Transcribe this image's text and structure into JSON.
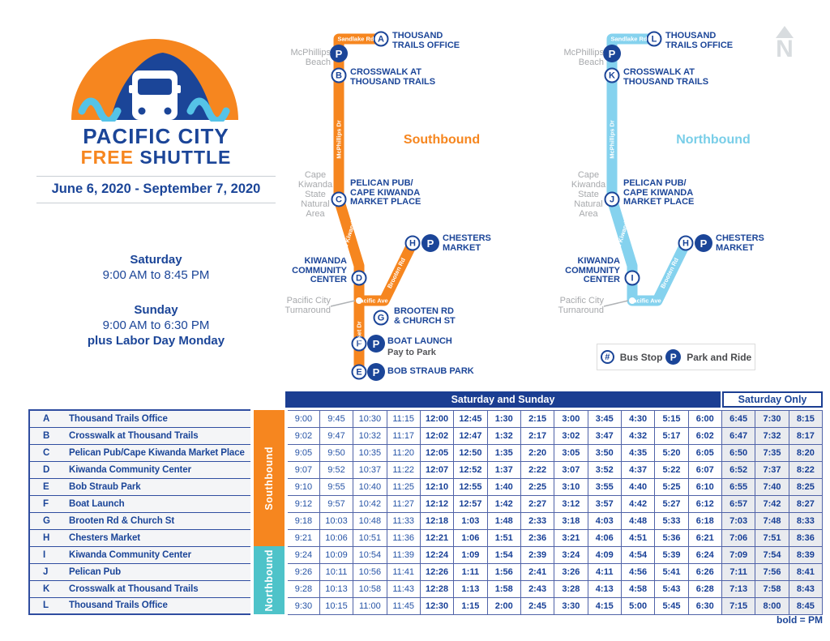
{
  "logo": {
    "title": "PACIFIC CITY",
    "free": "FREE",
    "shuttle": " SHUTTLE",
    "dates": "June 6, 2020 - September 7, 2020"
  },
  "hours": {
    "saturday_label": "Saturday",
    "saturday_hours": "9:00 AM to 8:45 PM",
    "sunday_label": "Sunday",
    "sunday_hours": "9:00 AM to 6:30 PM",
    "labor_day": "plus Labor Day Monday"
  },
  "colors": {
    "orange": "#F6861F",
    "dark_blue": "#1B4598",
    "header_blue": "#1B3E92",
    "northbound_line": "#85D2EE",
    "northbound_band": "#4EC3C9",
    "gray_label": "#A7A9AC"
  },
  "maps": {
    "p_symbol": "P",
    "southbound": {
      "direction": "Southbound",
      "stops": {
        "a": {
          "letter": "A",
          "label": "THOUSAND\nTRAILS OFFICE"
        },
        "b": {
          "letter": "B",
          "label": "CROSSWALK AT\nTHOUSAND TRAILS"
        },
        "c": {
          "letter": "C",
          "label": "PELICAN PUB/\nCAPE KIWANDA\nMARKET PLACE"
        },
        "d": {
          "letter": "D",
          "label": "KIWANDA\nCOMMUNITY\nCENTER"
        },
        "h": {
          "letter": "H",
          "label": "CHESTERS\nMARKET"
        },
        "g": {
          "letter": "G",
          "label": "BROOTEN RD\n& CHURCH ST"
        },
        "f": {
          "letter": "F",
          "label": "BOAT LAUNCH",
          "note": "Pay to Park"
        },
        "e": {
          "letter": "E",
          "label": "BOB STRAUB PARK"
        }
      },
      "roads": {
        "sandlake": "Sandlake Rd",
        "mcphillips": "McPhillips Dr",
        "cape_kiwanda": "Cape Kiwanda Dr",
        "pacific": "Pacific Ave",
        "sunset": "Sunset Dr",
        "brooten": "Brooten Rd"
      },
      "areas": {
        "beach": "McPhillips\nBeach",
        "park": "Cape\nKiwanda\nState\nNatural\nArea",
        "turnaround": "Pacific City\nTurnaround"
      }
    },
    "northbound": {
      "direction": "Northbound",
      "stops": {
        "l": {
          "letter": "L",
          "label": "THOUSAND\nTRAILS OFFICE"
        },
        "k": {
          "letter": "K",
          "label": "CROSSWALK AT\nTHOUSAND TRAILS"
        },
        "j": {
          "letter": "J",
          "label": "PELICAN PUB/\nCAPE KIWANDA\nMARKET PLACE"
        },
        "i": {
          "letter": "I",
          "label": "KIWANDA\nCOMMUNITY\nCENTER"
        },
        "h": {
          "letter": "H",
          "label": "CHESTERS\nMARKET"
        }
      },
      "roads": {
        "sandlake": "Sandlake Rd",
        "mcphillips": "McPhillips Dr",
        "cape_kiwanda": "Cape Kiwanda Dr",
        "pacific": "Pacific Ave",
        "brooten": "Brooten Rd"
      },
      "areas": {
        "beach": "McPhillips\nBeach",
        "park": "Cape\nKiwanda\nState\nNatural\nArea",
        "turnaround": "Pacific City\nTurnaround"
      }
    }
  },
  "legend": {
    "bus_stop_symbol": "#",
    "bus_stop_label": "Bus Stop",
    "park_symbol": "P",
    "park_label": "Park and Ride"
  },
  "compass": {
    "label": "N"
  },
  "table": {
    "header_sat_sun": "Saturday and Sunday",
    "header_sat_only": "Saturday Only",
    "footnote": "bold = PM",
    "directions": [
      {
        "label": "Southbound",
        "rows": 8
      },
      {
        "label": "Northbound",
        "rows": 4
      }
    ],
    "rows": [
      {
        "letter": "A",
        "name": "Thousand Trails Office",
        "bold_from": 4,
        "times": [
          "9:00",
          "9:45",
          "10:30",
          "11:15",
          "12:00",
          "12:45",
          "1:30",
          "2:15",
          "3:00",
          "3:45",
          "4:30",
          "5:15",
          "6:00",
          "6:45",
          "7:30",
          "8:15"
        ]
      },
      {
        "letter": "B",
        "name": "Crosswalk at Thousand Trails",
        "bold_from": 4,
        "times": [
          "9:02",
          "9:47",
          "10:32",
          "11:17",
          "12:02",
          "12:47",
          "1:32",
          "2:17",
          "3:02",
          "3:47",
          "4:32",
          "5:17",
          "6:02",
          "6:47",
          "7:32",
          "8:17"
        ]
      },
      {
        "letter": "C",
        "name": "Pelican Pub/Cape Kiwanda Market Place",
        "bold_from": 4,
        "times": [
          "9:05",
          "9:50",
          "10:35",
          "11:20",
          "12:05",
          "12:50",
          "1:35",
          "2:20",
          "3:05",
          "3:50",
          "4:35",
          "5:20",
          "6:05",
          "6:50",
          "7:35",
          "8:20"
        ]
      },
      {
        "letter": "D",
        "name": "Kiwanda Community Center",
        "bold_from": 4,
        "times": [
          "9:07",
          "9:52",
          "10:37",
          "11:22",
          "12:07",
          "12:52",
          "1:37",
          "2:22",
          "3:07",
          "3:52",
          "4:37",
          "5:22",
          "6:07",
          "6:52",
          "7:37",
          "8:22"
        ]
      },
      {
        "letter": "E",
        "name": "Bob Straub Park",
        "bold_from": 4,
        "times": [
          "9:10",
          "9:55",
          "10:40",
          "11:25",
          "12:10",
          "12:55",
          "1:40",
          "2:25",
          "3:10",
          "3:55",
          "4:40",
          "5:25",
          "6:10",
          "6:55",
          "7:40",
          "8:25"
        ]
      },
      {
        "letter": "F",
        "name": "Boat Launch",
        "bold_from": 4,
        "times": [
          "9:12",
          "9:57",
          "10:42",
          "11:27",
          "12:12",
          "12:57",
          "1:42",
          "2:27",
          "3:12",
          "3:57",
          "4:42",
          "5:27",
          "6:12",
          "6:57",
          "7:42",
          "8:27"
        ]
      },
      {
        "letter": "G",
        "name": "Brooten Rd & Church St",
        "bold_from": 4,
        "times": [
          "9:18",
          "10:03",
          "10:48",
          "11:33",
          "12:18",
          "1:03",
          "1:48",
          "2:33",
          "3:18",
          "4:03",
          "4:48",
          "5:33",
          "6:18",
          "7:03",
          "7:48",
          "8:33"
        ]
      },
      {
        "letter": "H",
        "name": "Chesters Market",
        "bold_from": 4,
        "times": [
          "9:21",
          "10:06",
          "10:51",
          "11:36",
          "12:21",
          "1:06",
          "1:51",
          "2:36",
          "3:21",
          "4:06",
          "4:51",
          "5:36",
          "6:21",
          "7:06",
          "7:51",
          "8:36"
        ]
      },
      {
        "letter": "I",
        "name": "Kiwanda Community Center",
        "bold_from": 4,
        "times": [
          "9:24",
          "10:09",
          "10:54",
          "11:39",
          "12:24",
          "1:09",
          "1:54",
          "2:39",
          "3:24",
          "4:09",
          "4:54",
          "5:39",
          "6:24",
          "7:09",
          "7:54",
          "8:39"
        ]
      },
      {
        "letter": "J",
        "name": "Pelican Pub",
        "bold_from": 4,
        "times": [
          "9:26",
          "10:11",
          "10:56",
          "11:41",
          "12:26",
          "1:11",
          "1:56",
          "2:41",
          "3:26",
          "4:11",
          "4:56",
          "5:41",
          "6:26",
          "7:11",
          "7:56",
          "8:41"
        ]
      },
      {
        "letter": "K",
        "name": "Crosswalk at Thousand Trails",
        "bold_from": 4,
        "times": [
          "9:28",
          "10:13",
          "10:58",
          "11:43",
          "12:28",
          "1:13",
          "1:58",
          "2:43",
          "3:28",
          "4:13",
          "4:58",
          "5:43",
          "6:28",
          "7:13",
          "7:58",
          "8:43"
        ]
      },
      {
        "letter": "L",
        "name": "Thousand Trails Office",
        "bold_from": 4,
        "times": [
          "9:30",
          "10:15",
          "11:00",
          "11:45",
          "12:30",
          "1:15",
          "2:00",
          "2:45",
          "3:30",
          "4:15",
          "5:00",
          "5:45",
          "6:30",
          "7:15",
          "8:00",
          "8:45"
        ]
      }
    ]
  }
}
